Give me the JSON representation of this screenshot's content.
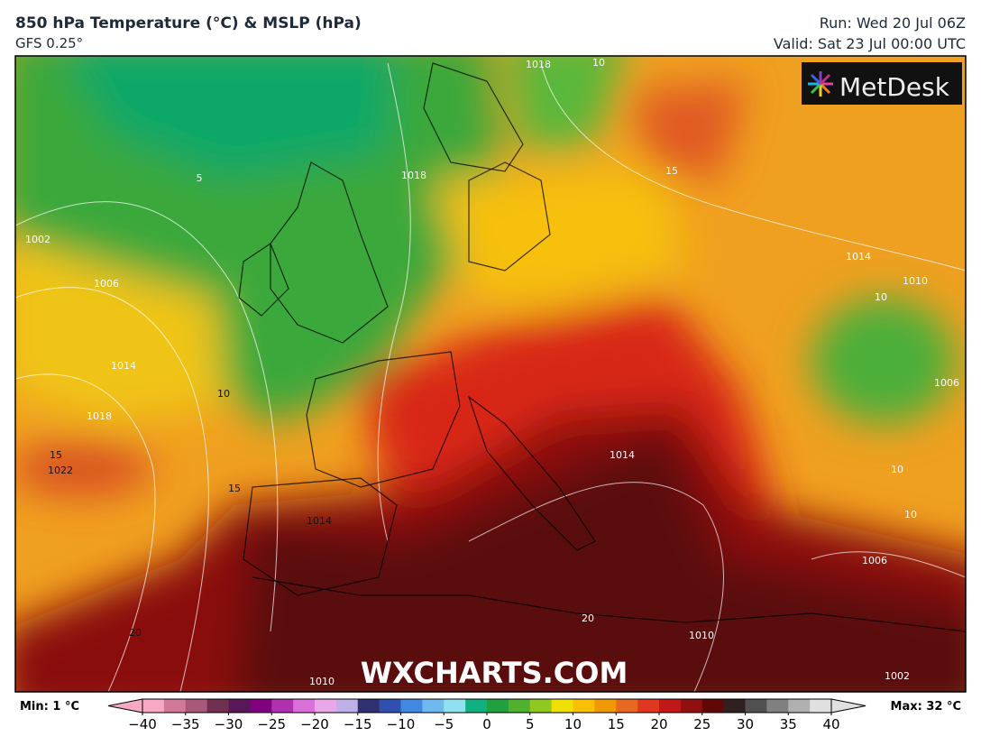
{
  "header": {
    "title": "850 hPa Temperature (°C) & MSLP (hPa)",
    "subtitle": "GFS 0.25°",
    "run": "Run: Wed 20 Jul 06Z",
    "valid": "Valid: Sat 23 Jul 00:00 UTC"
  },
  "map": {
    "watermark": "WXCHARTS.COM",
    "logo": "MetDesk",
    "labels": [
      "5",
      "1002",
      "1006",
      "1014",
      "1018",
      "10",
      "15",
      "1022",
      "15",
      "1014",
      "20",
      "1018",
      "1018",
      "10",
      "15",
      "1014",
      "1010",
      "10",
      "1006",
      "10",
      "10",
      "1014",
      "20",
      "1010",
      "1006",
      "1002",
      "1010"
    ]
  },
  "colorbar": {
    "min_label": "Min: 1 °C",
    "max_label": "Max: 32 °C",
    "range": [
      -40,
      40
    ],
    "ticks": [
      {
        "value": -40,
        "label": "−40"
      },
      {
        "value": -35,
        "label": "−35"
      },
      {
        "value": -30,
        "label": "−30"
      },
      {
        "value": -25,
        "label": "−25"
      },
      {
        "value": -20,
        "label": "−20"
      },
      {
        "value": -15,
        "label": "−15"
      },
      {
        "value": -10,
        "label": "−10"
      },
      {
        "value": -5,
        "label": "−5"
      },
      0,
      5,
      10,
      15,
      20,
      25,
      30,
      35,
      40
    ],
    "colors": [
      "#f6a8c4",
      "#d27898",
      "#a85878",
      "#703050",
      "#581858",
      "#800080",
      "#b030b0",
      "#d870d8",
      "#e8a8e8",
      "#c0b0e8",
      "#303070",
      "#3050b0",
      "#4088e0",
      "#70b8f0",
      "#90e0f0",
      "#10b080",
      "#20a040",
      "#50b030",
      "#90c820",
      "#f0e000",
      "#f8c000",
      "#f09800",
      "#e86820",
      "#e03820",
      "#c01818",
      "#901010",
      "#600808",
      "#302020",
      "#505050",
      "#808080",
      "#b0b0b0",
      "#e0e0e0"
    ]
  }
}
